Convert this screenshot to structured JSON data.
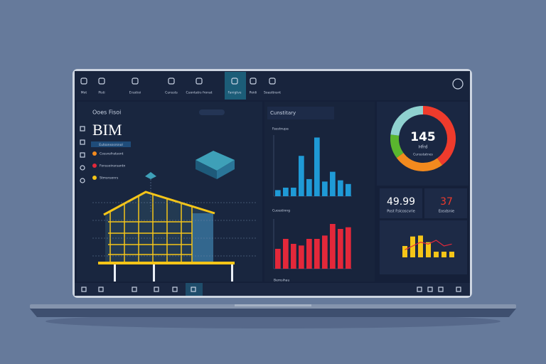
{
  "toolbar": {
    "items": [
      "Mot",
      "Pisti",
      "Ersstioi",
      "Cunssts",
      "Cuontatrs fronat",
      "Fanigtve",
      "Poidi",
      "Soasttnsnt"
    ]
  },
  "left_panel": {
    "title": "Ooes Fisoi",
    "heading": "BIM",
    "tag": "Eutsonsssrsnol",
    "legend": [
      "Cossnsfratsont",
      "Fonssoinsrsantn",
      "Stmsnsonrs"
    ]
  },
  "middle_panel": {
    "title": "Cunstitary",
    "chart1": {
      "label": "Fasstnupa",
      "color": "#1f9ad6",
      "ylim": [
        0,
        50
      ],
      "values": [
        5,
        7,
        7,
        33,
        14,
        48,
        12,
        20,
        13,
        10
      ]
    },
    "chart2": {
      "label": "Cuosstinng",
      "color": "#e3283a",
      "ylim": [
        0,
        30
      ],
      "values": [
        12,
        18,
        15,
        14,
        18,
        18,
        20,
        27,
        24,
        25
      ]
    },
    "footer": "Bemsihau"
  },
  "right_panel": {
    "donut": {
      "value": 145,
      "label": "Hfrd",
      "sublabel": "Cunsstatnes",
      "segments": [
        {
          "value": 40,
          "color": "#ef3b2c"
        },
        {
          "value": 25,
          "color": "#f28a1e"
        },
        {
          "value": 12,
          "color": "#5ab52e"
        },
        {
          "value": 23,
          "color": "#8fd1cf"
        }
      ]
    },
    "stat1": {
      "value": 49.99,
      "label": "Post Fslcoscvrie"
    },
    "stat2": {
      "value": 37,
      "label": "Eosdsnie"
    },
    "mini_chart": {
      "ylim": [
        0,
        30
      ],
      "bar_color": "#f5c518",
      "line_color": "#e3283a",
      "bars": [
        12,
        22,
        23,
        16,
        6,
        6,
        6
      ],
      "line": [
        8,
        12,
        16,
        14,
        18,
        12,
        14
      ]
    }
  }
}
